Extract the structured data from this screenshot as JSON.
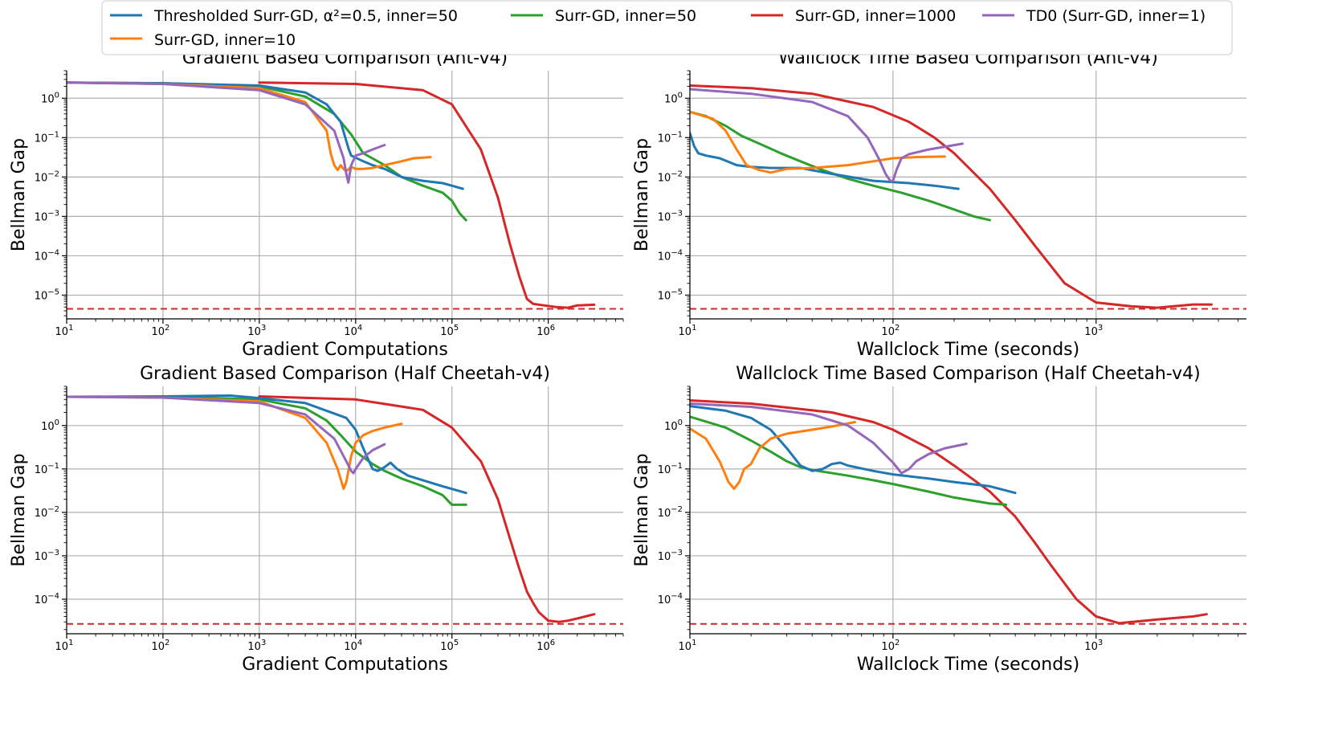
{
  "colors": {
    "blue": "#1f77b4",
    "orange": "#ff7f0e",
    "green": "#2ca02c",
    "red": "#d62728",
    "purple": "#9467bd"
  },
  "legend": {
    "entries": [
      {
        "key": "thresh",
        "label": "Thresholded Surr-GD, α²=0.5, inner=50",
        "color": "#1f77b4"
      },
      {
        "key": "in50",
        "label": "Surr-GD, inner=50",
        "color": "#2ca02c"
      },
      {
        "key": "in1000",
        "label": "Surr-GD, inner=1000",
        "color": "#d62728"
      },
      {
        "key": "td0",
        "label": "TD0 (Surr-GD, inner=1)",
        "color": "#9467bd"
      },
      {
        "key": "in10",
        "label": "Surr-GD, inner=10",
        "color": "#ff7f0e"
      }
    ]
  },
  "chart_data": [
    {
      "type": "line",
      "title": "Gradient Based Comparison (Ant-v4)",
      "xlabel": "Gradient Computations",
      "ylabel": "Bellman Gap",
      "xscale": "log",
      "yscale": "log",
      "xlim": [
        10,
        6000000
      ],
      "ylim": [
        2.5e-06,
        5
      ],
      "xticks": [
        {
          "base": "10",
          "exp": "1",
          "value": 10
        },
        {
          "base": "10",
          "exp": "2",
          "value": 100
        },
        {
          "base": "10",
          "exp": "3",
          "value": 1000
        },
        {
          "base": "10",
          "exp": "4",
          "value": 10000
        },
        {
          "base": "10",
          "exp": "5",
          "value": 100000
        },
        {
          "base": "10",
          "exp": "6",
          "value": 1000000
        }
      ],
      "yticks": [
        {
          "base": "10",
          "exp": "−5",
          "value": 1e-05
        },
        {
          "base": "10",
          "exp": "−4",
          "value": 0.0001
        },
        {
          "base": "10",
          "exp": "−3",
          "value": 0.001
        },
        {
          "base": "10",
          "exp": "−2",
          "value": 0.01
        },
        {
          "base": "10",
          "exp": "−1",
          "value": 0.1
        },
        {
          "base": "10",
          "exp": "0",
          "value": 1
        }
      ],
      "ref_line": 4.5e-06,
      "series": [
        {
          "key": "thresh",
          "x": [
            10,
            100,
            1000,
            3000,
            5000,
            7000,
            8500,
            9000,
            12000,
            15000,
            20000,
            30000,
            50000,
            80000,
            100000,
            130000
          ],
          "y": [
            2.5,
            2.4,
            2.1,
            1.4,
            0.7,
            0.25,
            0.05,
            0.035,
            0.025,
            0.02,
            0.016,
            0.01,
            0.008,
            0.007,
            0.006,
            0.005
          ]
        },
        {
          "key": "in50",
          "x": [
            10,
            100,
            1000,
            3000,
            6000,
            9000,
            12000,
            20000,
            30000,
            50000,
            80000,
            100000,
            120000,
            140000
          ],
          "y": [
            2.5,
            2.4,
            2.0,
            1.1,
            0.4,
            0.12,
            0.04,
            0.02,
            0.01,
            0.006,
            0.004,
            0.0025,
            0.0012,
            0.0008
          ]
        },
        {
          "key": "in1000",
          "x": [
            1000,
            10000,
            50000,
            100000,
            200000,
            300000,
            400000,
            500000,
            600000,
            700000,
            900000,
            1200000,
            1600000,
            2000000,
            3000000
          ],
          "y": [
            2.5,
            2.3,
            1.6,
            0.7,
            0.05,
            0.003,
            0.0002,
            3e-05,
            8e-06,
            6e-06,
            5.5e-06,
            5e-06,
            4.8e-06,
            5.5e-06,
            5.7e-06
          ]
        },
        {
          "key": "td0",
          "x": [
            10,
            100,
            1000,
            3000,
            6000,
            7500,
            8000,
            8400,
            9000,
            10000,
            12000,
            15000,
            20000
          ],
          "y": [
            2.5,
            2.3,
            1.6,
            0.7,
            0.15,
            0.03,
            0.012,
            0.0072,
            0.02,
            0.035,
            0.04,
            0.05,
            0.065
          ]
        },
        {
          "key": "in10",
          "x": [
            10,
            100,
            1000,
            3000,
            5000,
            5500,
            6000,
            6500,
            7000,
            7500,
            8000,
            8500,
            9000,
            10000,
            12000,
            15000,
            20000,
            30000,
            40000,
            60000
          ],
          "y": [
            2.5,
            2.3,
            1.8,
            0.8,
            0.15,
            0.04,
            0.02,
            0.015,
            0.02,
            0.016,
            0.014,
            0.016,
            0.018,
            0.016,
            0.016,
            0.017,
            0.02,
            0.025,
            0.03,
            0.032
          ]
        }
      ]
    },
    {
      "type": "line",
      "title": "Wallclock Time Based Comparison (Ant-v4)",
      "xlabel": "Wallclock Time (seconds)",
      "ylabel": "Bellman Gap",
      "xscale": "log",
      "yscale": "log",
      "xlim": [
        10,
        5500
      ],
      "ylim": [
        2.5e-06,
        5
      ],
      "xticks": [
        {
          "base": "10",
          "exp": "1",
          "value": 10
        },
        {
          "base": "10",
          "exp": "2",
          "value": 100
        },
        {
          "base": "10",
          "exp": "3",
          "value": 1000
        }
      ],
      "yticks": [
        {
          "base": "10",
          "exp": "−5",
          "value": 1e-05
        },
        {
          "base": "10",
          "exp": "−4",
          "value": 0.0001
        },
        {
          "base": "10",
          "exp": "−3",
          "value": 0.001
        },
        {
          "base": "10",
          "exp": "−2",
          "value": 0.01
        },
        {
          "base": "10",
          "exp": "−1",
          "value": 0.1
        },
        {
          "base": "10",
          "exp": "0",
          "value": 1
        }
      ],
      "ref_line": 4.5e-06,
      "series": [
        {
          "key": "thresh",
          "x": [
            10,
            10.5,
            11,
            12,
            14,
            17,
            20,
            25,
            35,
            50,
            80,
            120,
            160,
            210
          ],
          "y": [
            0.13,
            0.06,
            0.04,
            0.035,
            0.03,
            0.02,
            0.018,
            0.017,
            0.017,
            0.012,
            0.008,
            0.007,
            0.006,
            0.005
          ]
        },
        {
          "key": "in50",
          "x": [
            10,
            12,
            15,
            18,
            22,
            28,
            35,
            45,
            60,
            80,
            110,
            150,
            200,
            250,
            300
          ],
          "y": [
            0.45,
            0.35,
            0.2,
            0.11,
            0.07,
            0.04,
            0.025,
            0.015,
            0.009,
            0.006,
            0.004,
            0.0025,
            0.0015,
            0.001,
            0.0008
          ]
        },
        {
          "key": "in1000",
          "x": [
            10,
            20,
            40,
            80,
            120,
            160,
            200,
            300,
            400,
            500,
            700,
            1000,
            1500,
            2000,
            3000,
            3700
          ],
          "y": [
            2.1,
            1.8,
            1.3,
            0.6,
            0.25,
            0.1,
            0.04,
            0.005,
            0.0008,
            0.00018,
            2e-05,
            6.5e-06,
            5.2e-06,
            4.8e-06,
            5.8e-06,
            5.8e-06
          ]
        },
        {
          "key": "td0",
          "x": [
            10,
            20,
            40,
            60,
            75,
            85,
            92,
            97,
            100,
            104,
            110,
            120,
            150,
            220
          ],
          "y": [
            1.7,
            1.3,
            0.8,
            0.35,
            0.1,
            0.03,
            0.012,
            0.008,
            0.008,
            0.015,
            0.03,
            0.038,
            0.05,
            0.07
          ]
        },
        {
          "key": "in10",
          "x": [
            10,
            13,
            15,
            17,
            19,
            22,
            25,
            30,
            40,
            60,
            80,
            100,
            130,
            180
          ],
          "y": [
            0.45,
            0.3,
            0.15,
            0.05,
            0.02,
            0.015,
            0.013,
            0.016,
            0.017,
            0.02,
            0.025,
            0.03,
            0.032,
            0.033
          ]
        }
      ]
    },
    {
      "type": "line",
      "title": "Gradient Based Comparison (Half Cheetah-v4)",
      "xlabel": "Gradient Computations",
      "ylabel": "Bellman Gap",
      "xscale": "log",
      "yscale": "log",
      "xlim": [
        10,
        6000000
      ],
      "ylim": [
        1.6e-05,
        8
      ],
      "xticks": [
        {
          "base": "10",
          "exp": "1",
          "value": 10
        },
        {
          "base": "10",
          "exp": "2",
          "value": 100
        },
        {
          "base": "10",
          "exp": "3",
          "value": 1000
        },
        {
          "base": "10",
          "exp": "4",
          "value": 10000
        },
        {
          "base": "10",
          "exp": "5",
          "value": 100000
        },
        {
          "base": "10",
          "exp": "6",
          "value": 1000000
        }
      ],
      "yticks": [
        {
          "base": "10",
          "exp": "−4",
          "value": 0.0001
        },
        {
          "base": "10",
          "exp": "−3",
          "value": 0.001
        },
        {
          "base": "10",
          "exp": "−2",
          "value": 0.01
        },
        {
          "base": "10",
          "exp": "−1",
          "value": 0.1
        },
        {
          "base": "10",
          "exp": "0",
          "value": 1
        }
      ],
      "ref_line": 2.7e-05,
      "series": [
        {
          "key": "thresh",
          "x": [
            10,
            100,
            500,
            1000,
            3000,
            8000,
            10000,
            12000,
            15000,
            17000,
            20000,
            23000,
            27000,
            35000,
            50000,
            80000,
            140000
          ],
          "y": [
            4.6,
            4.7,
            4.9,
            4.3,
            3.3,
            1.5,
            0.8,
            0.3,
            0.1,
            0.09,
            0.11,
            0.14,
            0.1,
            0.07,
            0.055,
            0.04,
            0.028
          ]
        },
        {
          "key": "in50",
          "x": [
            10,
            100,
            1000,
            3000,
            5000,
            7000,
            10000,
            15000,
            20000,
            30000,
            50000,
            80000,
            100000,
            140000
          ],
          "y": [
            4.6,
            4.6,
            4.0,
            2.5,
            1.3,
            0.6,
            0.25,
            0.13,
            0.09,
            0.06,
            0.04,
            0.025,
            0.015,
            0.015
          ]
        },
        {
          "key": "in1000",
          "x": [
            1000,
            10000,
            50000,
            100000,
            200000,
            300000,
            400000,
            500000,
            600000,
            700000,
            800000,
            1000000,
            1300000,
            1600000,
            2000000,
            3000000
          ],
          "y": [
            4.7,
            4.0,
            2.3,
            0.9,
            0.15,
            0.02,
            0.0025,
            0.0005,
            0.00015,
            8e-05,
            5e-05,
            3.2e-05,
            3e-05,
            3.2e-05,
            3.6e-05,
            4.5e-05
          ]
        },
        {
          "key": "td0",
          "x": [
            10,
            100,
            1000,
            3000,
            6000,
            8000,
            9000,
            9500,
            10000,
            12000,
            15000,
            20000
          ],
          "y": [
            4.6,
            4.4,
            3.3,
            1.8,
            0.5,
            0.15,
            0.09,
            0.08,
            0.1,
            0.18,
            0.27,
            0.37
          ]
        },
        {
          "key": "in10",
          "x": [
            10,
            100,
            1000,
            3000,
            5000,
            6500,
            7500,
            8000,
            9000,
            10000,
            12000,
            15000,
            20000,
            30000
          ],
          "y": [
            4.6,
            4.4,
            3.6,
            1.5,
            0.4,
            0.1,
            0.035,
            0.05,
            0.2,
            0.4,
            0.6,
            0.75,
            0.9,
            1.1
          ]
        }
      ]
    },
    {
      "type": "line",
      "title": "Wallclock Time Based Comparison (Half Cheetah-v4)",
      "xlabel": "Wallclock Time (seconds)",
      "ylabel": "Bellman Gap",
      "xscale": "log",
      "yscale": "log",
      "xlim": [
        10,
        5500
      ],
      "ylim": [
        1.6e-05,
        8
      ],
      "xticks": [
        {
          "base": "10",
          "exp": "1",
          "value": 10
        },
        {
          "base": "10",
          "exp": "2",
          "value": 100
        },
        {
          "base": "10",
          "exp": "3",
          "value": 1000
        }
      ],
      "yticks": [
        {
          "base": "10",
          "exp": "−4",
          "value": 0.0001
        },
        {
          "base": "10",
          "exp": "−3",
          "value": 0.001
        },
        {
          "base": "10",
          "exp": "−2",
          "value": 0.01
        },
        {
          "base": "10",
          "exp": "−1",
          "value": 0.1
        },
        {
          "base": "10",
          "exp": "0",
          "value": 1
        }
      ],
      "ref_line": 2.7e-05,
      "series": [
        {
          "key": "thresh",
          "x": [
            10,
            15,
            20,
            25,
            30,
            35,
            40,
            45,
            50,
            55,
            60,
            80,
            100,
            150,
            200,
            300,
            400
          ],
          "y": [
            2.8,
            2.2,
            1.5,
            0.8,
            0.3,
            0.12,
            0.09,
            0.1,
            0.13,
            0.14,
            0.12,
            0.09,
            0.075,
            0.06,
            0.05,
            0.04,
            0.028
          ]
        },
        {
          "key": "in50",
          "x": [
            10,
            15,
            20,
            25,
            30,
            35,
            40,
            60,
            80,
            100,
            150,
            200,
            300,
            360
          ],
          "y": [
            1.6,
            0.9,
            0.45,
            0.25,
            0.15,
            0.11,
            0.095,
            0.07,
            0.055,
            0.045,
            0.03,
            0.022,
            0.016,
            0.015
          ]
        },
        {
          "key": "in1000",
          "x": [
            10,
            20,
            50,
            80,
            100,
            150,
            200,
            300,
            400,
            500,
            600,
            800,
            1000,
            1300,
            2000,
            3000,
            3500
          ],
          "y": [
            3.8,
            3.2,
            2.0,
            1.2,
            0.8,
            0.3,
            0.12,
            0.03,
            0.008,
            0.002,
            0.0006,
            0.0001,
            4e-05,
            2.8e-05,
            3.4e-05,
            4e-05,
            4.5e-05
          ]
        },
        {
          "key": "td0",
          "x": [
            10,
            20,
            40,
            60,
            80,
            100,
            110,
            120,
            130,
            150,
            180,
            230
          ],
          "y": [
            3.2,
            2.7,
            1.8,
            1.0,
            0.4,
            0.14,
            0.08,
            0.1,
            0.15,
            0.22,
            0.3,
            0.38
          ]
        },
        {
          "key": "in10",
          "x": [
            10,
            12,
            14,
            15.5,
            16.5,
            17.5,
            18.5,
            20,
            22,
            25,
            30,
            40,
            50,
            65
          ],
          "y": [
            0.85,
            0.5,
            0.15,
            0.05,
            0.035,
            0.05,
            0.1,
            0.13,
            0.3,
            0.5,
            0.65,
            0.8,
            0.95,
            1.2
          ]
        }
      ]
    }
  ]
}
